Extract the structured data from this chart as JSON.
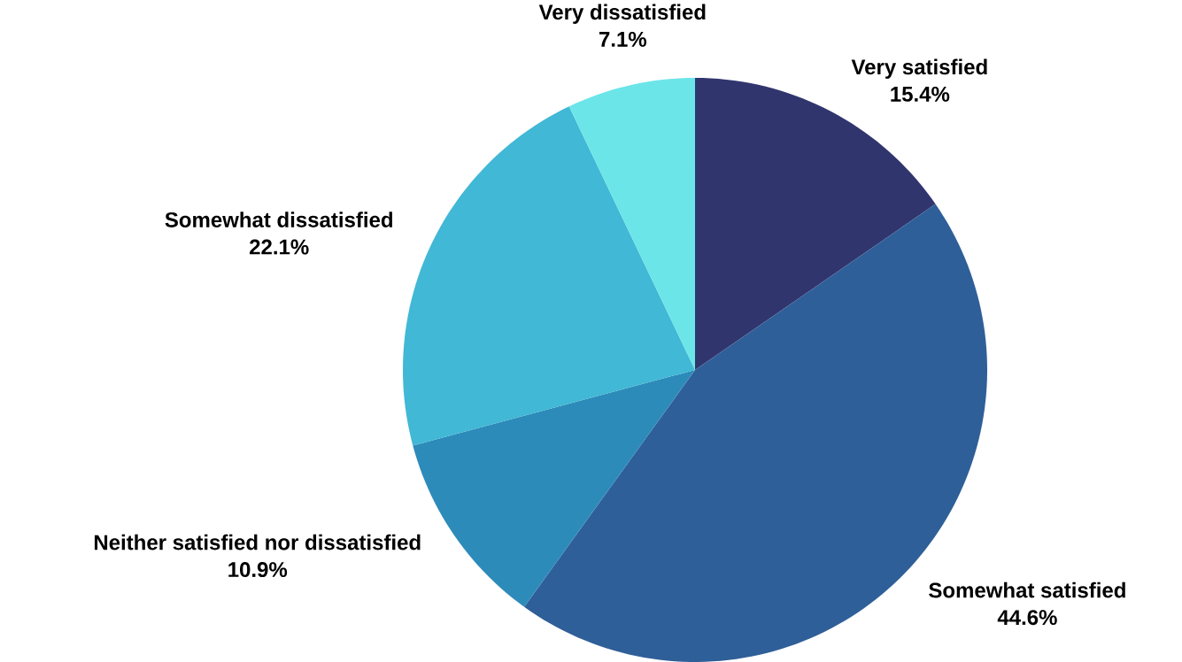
{
  "chart_data": {
    "type": "pie",
    "categories": [
      "Very satisfied",
      "Somewhat satisfied",
      "Neither satisfied nor dissatisfied",
      "Somewhat dissatisfied",
      "Very dissatisfied"
    ],
    "values": [
      15.4,
      44.6,
      10.9,
      22.1,
      7.1
    ],
    "value_labels": [
      "15.4%",
      "44.6%",
      "10.9%",
      "22.1%",
      "7.1%"
    ],
    "colors": [
      "#31356e",
      "#2f5f98",
      "#2d8bba",
      "#41b8d5",
      "#6ce5e8"
    ]
  }
}
